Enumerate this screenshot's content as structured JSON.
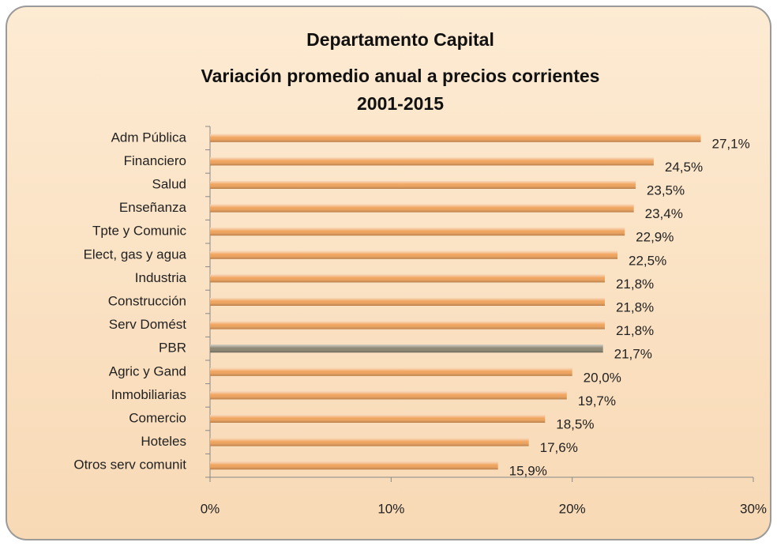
{
  "chart_data": {
    "type": "barh",
    "title": [
      "Departamento Capital",
      "Variación promedio anual a precios corrientes",
      "2001-2015"
    ],
    "categories": [
      "Adm Pública",
      "Financiero",
      "Salud",
      "Enseñanza",
      "Tpte y Comunic",
      "Elect, gas y agua",
      "Industria",
      "Construcción",
      "Serv Domést",
      "PBR",
      "Agric y Gand",
      "Inmobiliarias",
      "Comercio",
      "Hoteles",
      "Otros serv comunit"
    ],
    "values": [
      27.1,
      24.5,
      23.5,
      23.4,
      22.9,
      22.5,
      21.8,
      21.8,
      21.8,
      21.7,
      20.0,
      19.7,
      18.5,
      17.6,
      15.9
    ],
    "value_labels": [
      "27,1%",
      "24,5%",
      "23,5%",
      "23,4%",
      "22,9%",
      "22,5%",
      "21,8%",
      "21,8%",
      "21,8%",
      "21,7%",
      "20,0%",
      "19,7%",
      "18,5%",
      "17,6%",
      "15,9%"
    ],
    "colors": [
      "#f0a35c",
      "#f0a35c",
      "#f0a35c",
      "#f0a35c",
      "#f0a35c",
      "#f0a35c",
      "#f0a35c",
      "#f0a35c",
      "#f0a35c",
      "#8c8672",
      "#f0a35c",
      "#f0a35c",
      "#f0a35c",
      "#f0a35c",
      "#f0a35c"
    ],
    "xlim": [
      0,
      30
    ],
    "xticks": [
      {
        "value": 0,
        "label": "0%"
      },
      {
        "value": 10,
        "label": "10%"
      },
      {
        "value": 20,
        "label": "20%"
      },
      {
        "value": 30,
        "label": "30%"
      }
    ]
  }
}
